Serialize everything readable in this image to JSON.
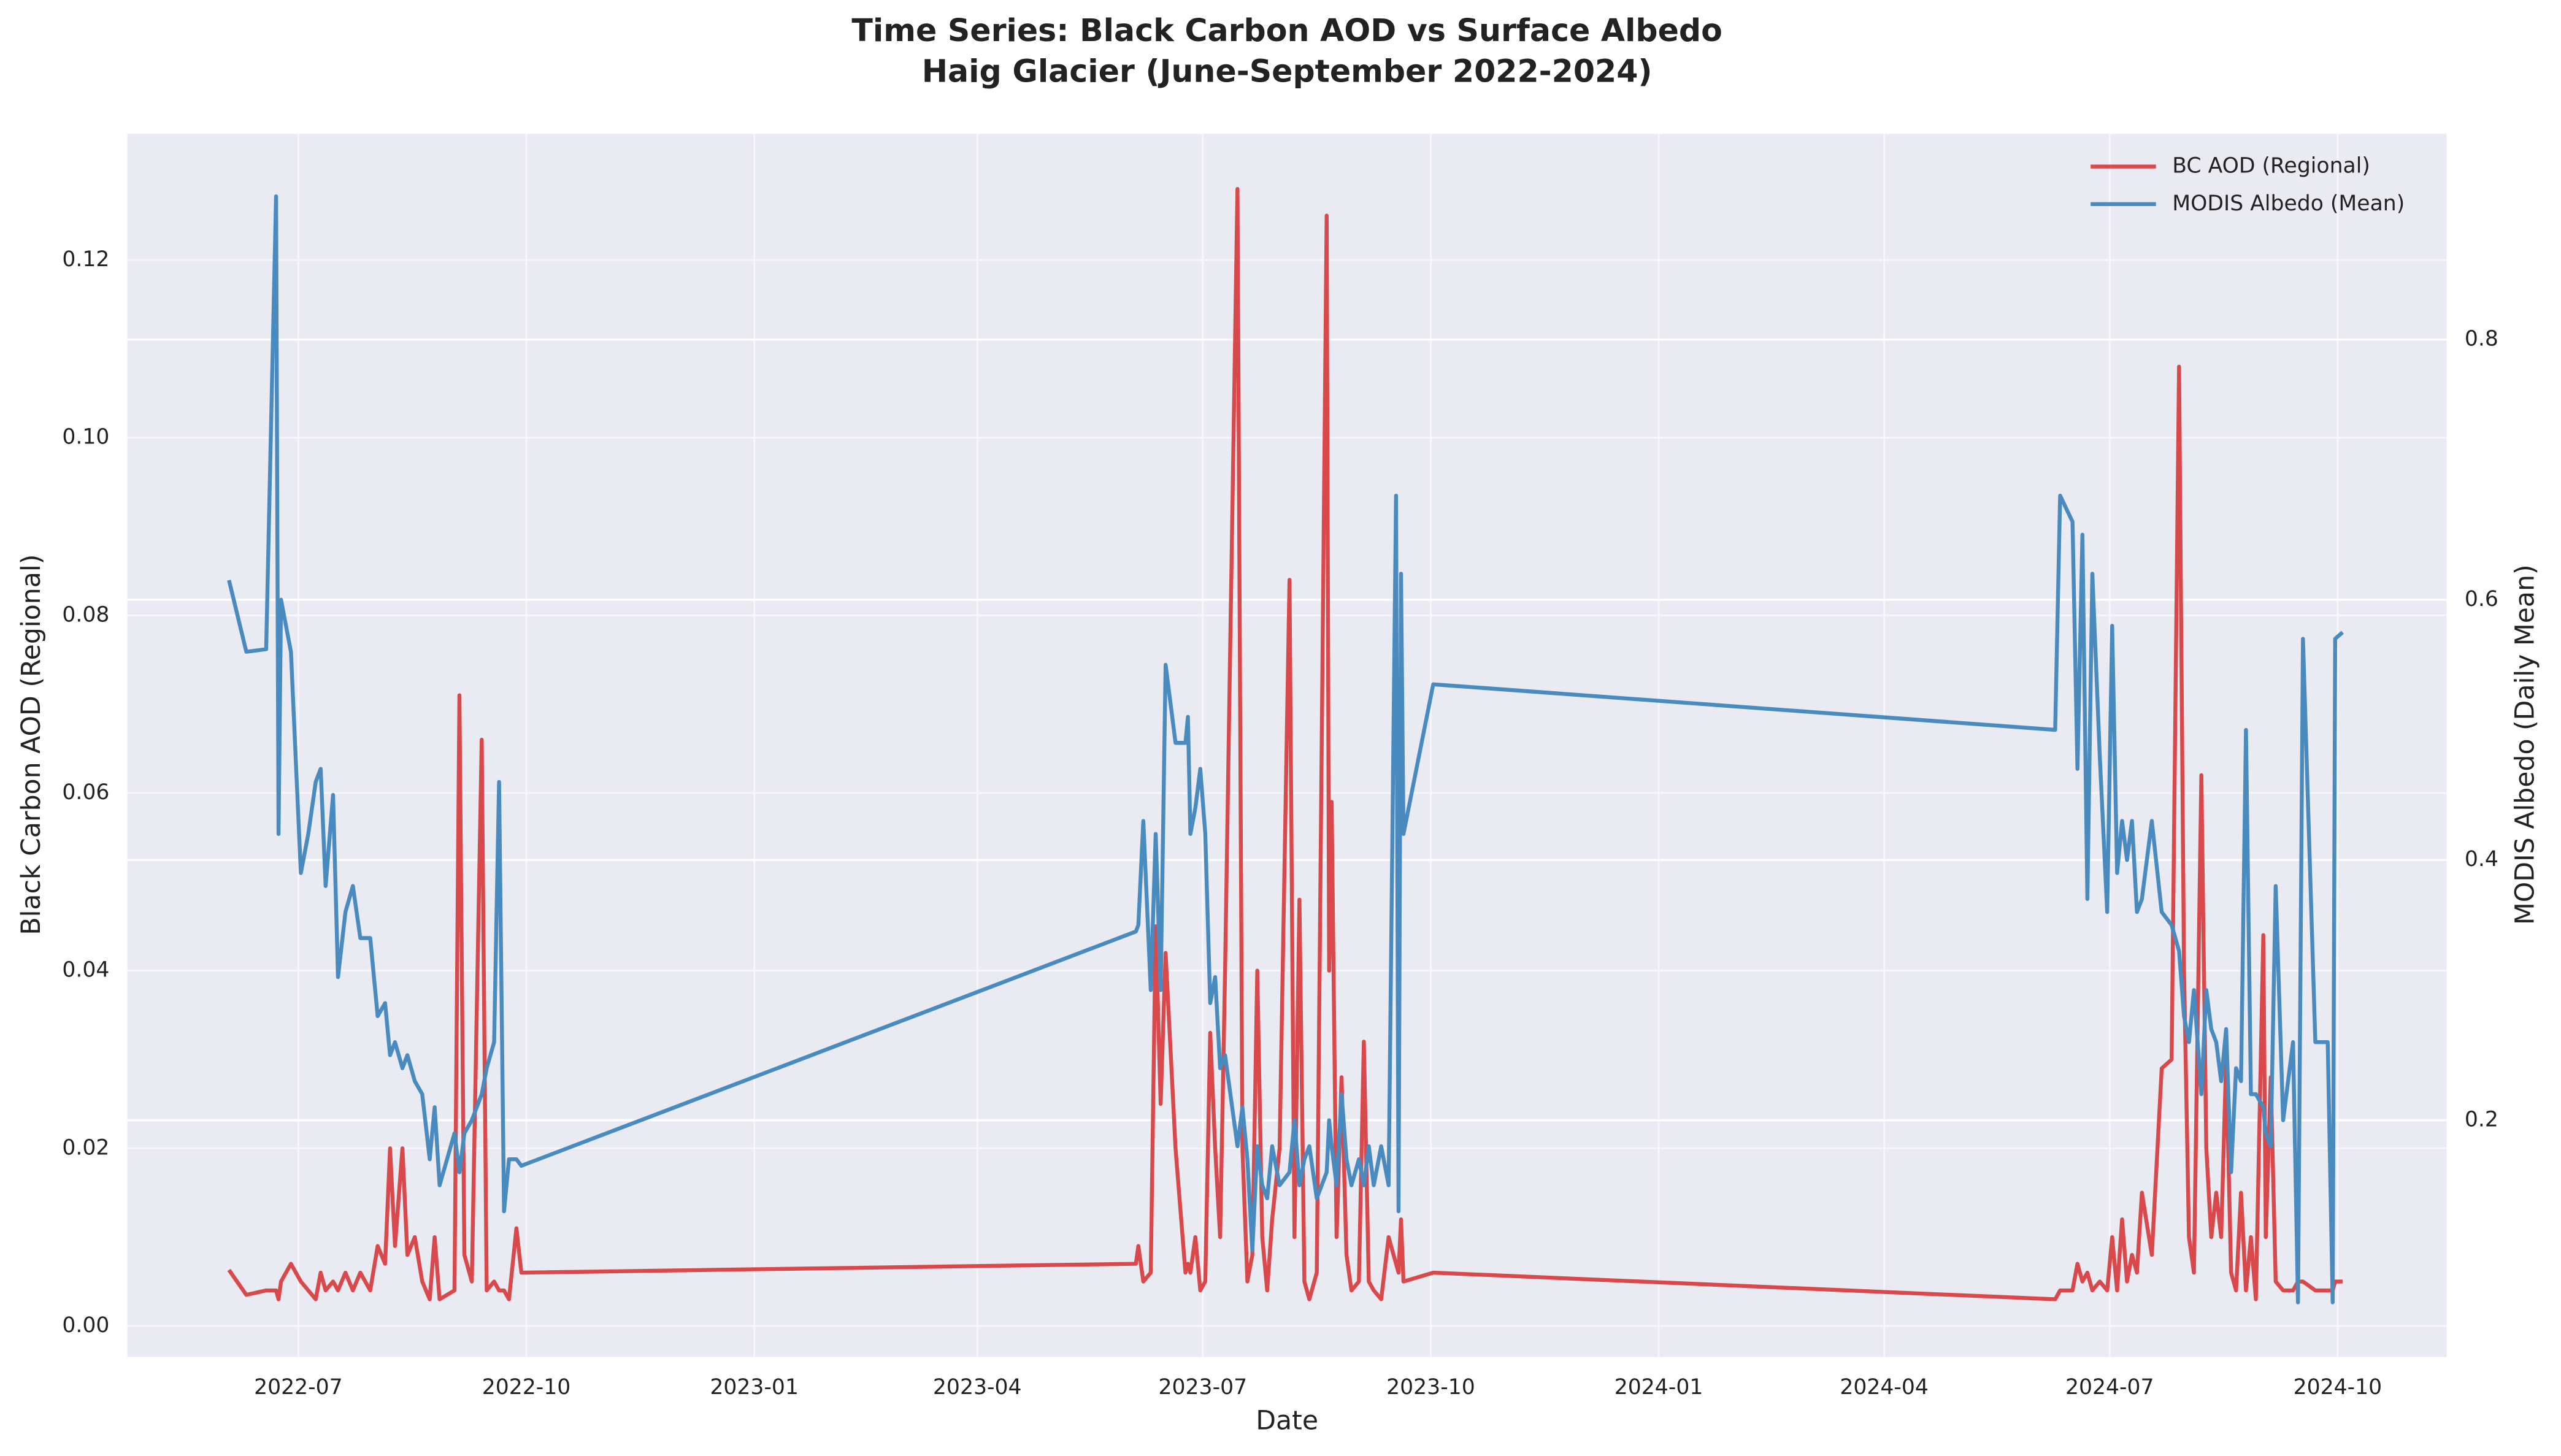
{
  "chart_data": {
    "type": "line",
    "title": "Time Series: Black Carbon AOD vs Surface Albedo",
    "subtitle": "Haig Glacier (June-September 2022-2024)",
    "x_label": "Date",
    "y_label": "Black Carbon AOD (Regional)",
    "y2_label": "MODIS Albedo (Daily Mean)",
    "grid": true,
    "legend": "upper right",
    "y_color": "#d62728",
    "y2_color": "#1f77b4",
    "xlim": [
      "2022-04-23",
      "2024-11-14"
    ],
    "xticks": [
      "2022-07",
      "2022-10",
      "2023-01",
      "2023-04",
      "2023-07",
      "2023-10",
      "2024-01",
      "2024-04",
      "2024-07",
      "2024-10"
    ],
    "ylim": [
      -0.0035,
      0.1342
    ],
    "yticks": [
      {
        "value": 0,
        "label": "0.00"
      },
      0.02,
      0.04,
      0.06,
      0.08,
      {
        "value": 0.1,
        "label": "0.10"
      },
      0.12
    ],
    "y2lim": [
      0.018,
      0.958
    ],
    "y2ticks": [
      0.2,
      0.4,
      0.6,
      0.8
    ],
    "x": [
      "2022-06-03",
      "2022-06-10",
      "2022-06-18",
      "2022-06-22",
      "2022-06-23",
      "2022-06-24",
      "2022-06-28",
      "2022-07-02",
      "2022-07-05",
      "2022-07-08",
      "2022-07-10",
      "2022-07-12",
      "2022-07-15",
      "2022-07-17",
      "2022-07-20",
      "2022-07-23",
      "2022-07-26",
      "2022-07-30",
      "2022-08-02",
      "2022-08-05",
      "2022-08-07",
      "2022-08-09",
      "2022-08-12",
      "2022-08-14",
      "2022-08-17",
      "2022-08-20",
      "2022-08-23",
      "2022-08-25",
      "2022-08-27",
      "2022-09-02",
      "2022-09-04",
      "2022-09-06",
      "2022-09-09",
      "2022-09-13",
      "2022-09-15",
      "2022-09-18",
      "2022-09-20",
      "2022-09-22",
      "2022-09-24",
      "2022-09-27",
      "2022-09-29",
      "2023-06-04",
      "2023-06-05",
      "2023-06-07",
      "2023-06-10",
      "2023-06-12",
      "2023-06-14",
      "2023-06-16",
      "2023-06-20",
      "2023-06-24",
      "2023-06-25",
      "2023-06-26",
      "2023-06-28",
      "2023-06-30",
      "2023-07-02",
      "2023-07-04",
      "2023-07-06",
      "2023-07-08",
      "2023-07-10",
      "2023-07-15",
      "2023-07-17",
      "2023-07-19",
      "2023-07-21",
      "2023-07-23",
      "2023-07-25",
      "2023-07-27",
      "2023-07-29",
      "2023-08-01",
      "2023-08-05",
      "2023-08-07",
      "2023-08-09",
      "2023-08-11",
      "2023-08-13",
      "2023-08-16",
      "2023-08-20",
      "2023-08-21",
      "2023-08-22",
      "2023-08-24",
      "2023-08-26",
      "2023-08-28",
      "2023-08-30",
      "2023-09-02",
      "2023-09-04",
      "2023-09-06",
      "2023-09-08",
      "2023-09-11",
      "2023-09-14",
      "2023-09-17",
      "2023-09-18",
      "2023-09-19",
      "2023-09-20",
      "2023-10-02",
      "2024-06-09",
      "2024-06-11",
      "2024-06-16",
      "2024-06-18",
      "2024-06-20",
      "2024-06-22",
      "2024-06-24",
      "2024-06-27",
      "2024-06-30",
      "2024-07-02",
      "2024-07-04",
      "2024-07-06",
      "2024-07-08",
      "2024-07-10",
      "2024-07-12",
      "2024-07-14",
      "2024-07-18",
      "2024-07-22",
      "2024-07-26",
      "2024-07-29",
      "2024-07-31",
      "2024-08-02",
      "2024-08-04",
      "2024-08-07",
      "2024-08-09",
      "2024-08-11",
      "2024-08-13",
      "2024-08-15",
      "2024-08-17",
      "2024-08-19",
      "2024-08-21",
      "2024-08-23",
      "2024-08-25",
      "2024-08-27",
      "2024-08-29",
      "2024-09-01",
      "2024-09-02",
      "2024-09-04",
      "2024-09-06",
      "2024-09-09",
      "2024-09-13",
      "2024-09-15",
      "2024-09-17",
      "2024-09-22",
      "2024-09-27",
      "2024-09-29",
      "2024-09-30",
      "2024-10-03"
    ],
    "series": [
      {
        "name": "BC AOD (Regional)",
        "color": "#d9484a",
        "values": [
          0.0063,
          0.0035,
          0.004,
          0.004,
          0.003,
          0.005,
          0.007,
          0.005,
          0.004,
          0.003,
          0.006,
          0.004,
          0.005,
          0.004,
          0.006,
          0.004,
          0.006,
          0.004,
          0.009,
          0.007,
          0.02,
          0.009,
          0.02,
          0.008,
          0.01,
          0.005,
          0.003,
          0.01,
          0.003,
          0.004,
          0.071,
          0.008,
          0.005,
          0.066,
          0.004,
          0.005,
          0.004,
          0.004,
          0.003,
          0.011,
          0.006,
          0.007,
          0.009,
          0.005,
          0.006,
          0.045,
          0.025,
          0.042,
          0.02,
          0.006,
          0.007,
          0.006,
          0.01,
          0.004,
          0.005,
          0.033,
          0.02,
          0.01,
          0.04,
          0.128,
          0.02,
          0.005,
          0.008,
          0.04,
          0.01,
          0.004,
          0.012,
          0.02,
          0.084,
          0.01,
          0.048,
          0.005,
          0.003,
          0.006,
          0.125,
          0.04,
          0.059,
          0.01,
          0.028,
          0.008,
          0.004,
          0.005,
          0.032,
          0.005,
          0.004,
          0.003,
          0.01,
          0.007,
          0.006,
          0.012,
          0.005,
          0.006,
          0.003,
          0.004,
          0.004,
          0.007,
          0.005,
          0.006,
          0.004,
          0.005,
          0.004,
          0.01,
          0.004,
          0.012,
          0.005,
          0.008,
          0.006,
          0.015,
          0.008,
          0.029,
          0.03,
          0.108,
          0.04,
          0.01,
          0.006,
          0.062,
          0.02,
          0.01,
          0.015,
          0.01,
          0.03,
          0.006,
          0.004,
          0.015,
          0.004,
          0.01,
          0.003,
          0.044,
          0.01,
          0.028,
          0.005,
          0.004,
          0.004,
          0.005,
          0.005,
          0.004,
          0.004,
          0.004,
          0.005,
          0.005
        ]
      },
      {
        "name": "MODIS Albedo (Mean)",
        "color": "#4a8bbf",
        "axis": "y2",
        "values": [
          0.615,
          0.56,
          0.562,
          0.91,
          0.42,
          0.6,
          0.56,
          0.39,
          0.42,
          0.46,
          0.47,
          0.38,
          0.45,
          0.31,
          0.36,
          0.38,
          0.34,
          0.34,
          0.28,
          0.29,
          0.25,
          0.26,
          0.24,
          0.25,
          0.23,
          0.22,
          0.17,
          0.21,
          0.15,
          0.19,
          0.16,
          0.19,
          0.2,
          0.22,
          0.24,
          0.26,
          0.46,
          0.13,
          0.17,
          0.17,
          0.165,
          0.345,
          0.35,
          0.43,
          0.3,
          0.42,
          0.3,
          0.55,
          0.49,
          0.49,
          0.51,
          0.42,
          0.44,
          0.47,
          0.42,
          0.29,
          0.31,
          0.24,
          0.25,
          0.18,
          0.21,
          0.17,
          0.1,
          0.18,
          0.15,
          0.14,
          0.18,
          0.15,
          0.16,
          0.2,
          0.15,
          0.17,
          0.18,
          0.14,
          0.16,
          0.2,
          0.18,
          0.15,
          0.22,
          0.17,
          0.15,
          0.17,
          0.15,
          0.18,
          0.15,
          0.18,
          0.15,
          0.68,
          0.13,
          0.62,
          0.42,
          0.535,
          0.5,
          0.68,
          0.66,
          0.47,
          0.65,
          0.37,
          0.62,
          0.48,
          0.36,
          0.58,
          0.39,
          0.43,
          0.4,
          0.43,
          0.36,
          0.37,
          0.43,
          0.36,
          0.35,
          0.33,
          0.28,
          0.26,
          0.3,
          0.22,
          0.3,
          0.27,
          0.26,
          0.23,
          0.27,
          0.16,
          0.24,
          0.23,
          0.5,
          0.22,
          0.22,
          0.21,
          0.19,
          0.18,
          0.38,
          0.2,
          0.26,
          0.06,
          0.57,
          0.26,
          0.26,
          0.06,
          0.57,
          0.575
        ]
      }
    ]
  }
}
